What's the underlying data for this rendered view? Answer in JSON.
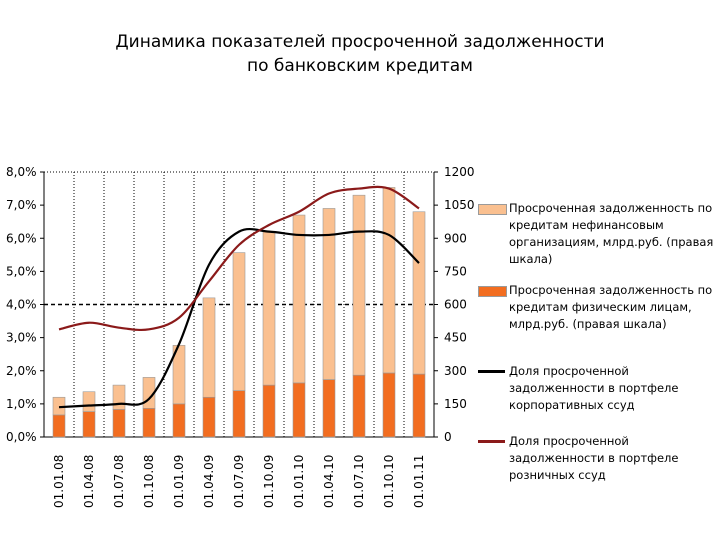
{
  "title": {
    "line1": "Динамика показателей просроченной задолженности",
    "line2": "по банковским кредитам"
  },
  "chart_data": {
    "type": "bar",
    "categories": [
      "01.01.08",
      "01.04.08",
      "01.07.08",
      "01.10.08",
      "01.01.09",
      "01.04.09",
      "01.07.09",
      "01.10.09",
      "01.01.10",
      "01.04.10",
      "01.07.10",
      "01.10.10",
      "01.01.11"
    ],
    "left_axis": {
      "ylim": [
        0,
        8
      ],
      "tick_labels": [
        "0,0%",
        "1,0%",
        "2,0%",
        "3,0%",
        "4,0%",
        "5,0%",
        "6,0%",
        "7,0%",
        "8,0%"
      ]
    },
    "right_axis": {
      "ylim": [
        0,
        1200
      ],
      "tick_labels": [
        "0",
        "150",
        "300",
        "450",
        "600",
        "750",
        "900",
        "1050",
        "1200"
      ]
    },
    "grid": "dotted vertical lines at categories; dashed horizontal line at 4,0%",
    "legend_position": "right",
    "series": [
      {
        "name": "Просроченная задолженность по кредитам нефинансовым организациям, млрд.руб. (правая шкала)",
        "type": "stacked-bar",
        "axis": "right",
        "color": "#FAC090",
        "values": [
          80,
          90,
          110,
          140,
          265,
          450,
          625,
          695,
          760,
          775,
          815,
          840,
          735
        ]
      },
      {
        "name": "Просроченная задолженность по кредитам физическим лицам, млрд.руб. (правая шкала)",
        "type": "stacked-bar",
        "axis": "right",
        "color": "#F26D20",
        "values": [
          100,
          115,
          125,
          130,
          150,
          180,
          210,
          235,
          245,
          260,
          280,
          290,
          285
        ]
      },
      {
        "name": "Доля просроченной задолженности в портфеле корпоративных ссуд",
        "type": "line",
        "axis": "left",
        "color": "#000000",
        "values": [
          0.9,
          0.95,
          1.0,
          1.15,
          2.8,
          5.2,
          6.2,
          6.2,
          6.1,
          6.1,
          6.2,
          6.1,
          5.25
        ]
      },
      {
        "name": "Доля просроченной задолженности в портфеле розничных ссуд",
        "type": "line",
        "axis": "left",
        "color": "#8B1A1A",
        "values": [
          3.25,
          3.45,
          3.3,
          3.25,
          3.6,
          4.7,
          5.8,
          6.4,
          6.8,
          7.35,
          7.5,
          7.5,
          6.9
        ]
      }
    ]
  }
}
